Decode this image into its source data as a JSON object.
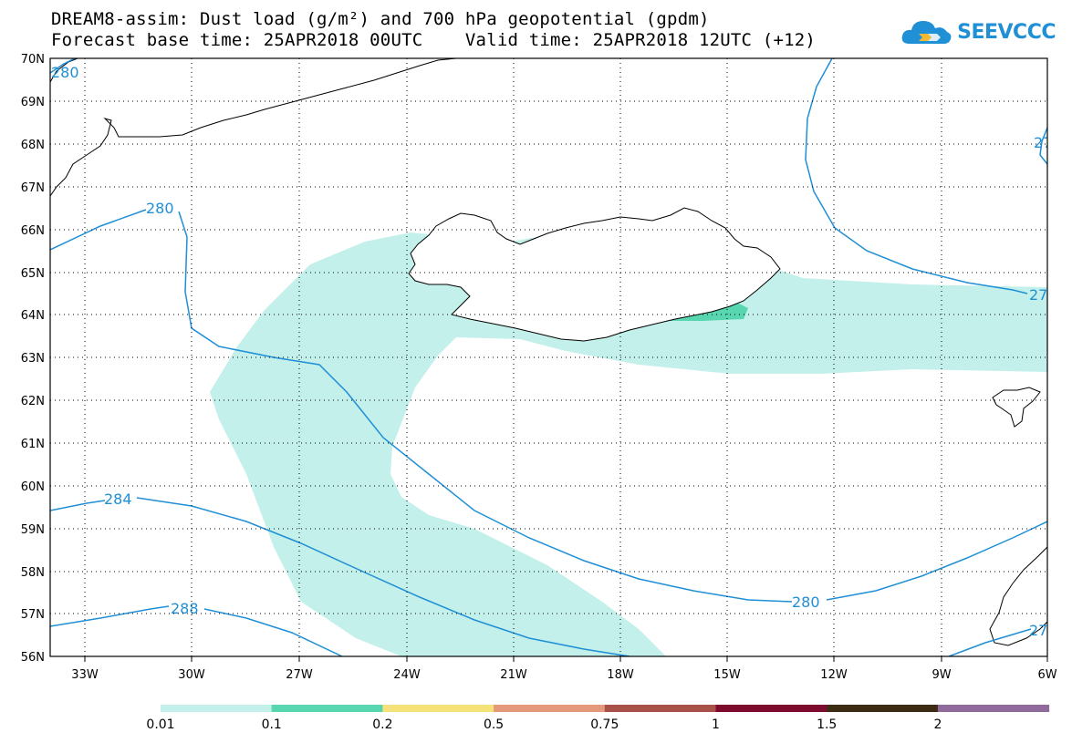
{
  "title": {
    "line1": "DREAM8-assim: Dust load (g/m²) and 700 hPa geopotential (gpdm)",
    "line2": "Forecast base time: 25APR2018 00UTC    Valid time: 25APR2018 12UTC (+12)"
  },
  "logo": {
    "text": "SEEVCCC",
    "icon": "cloud-icon"
  },
  "map": {
    "lat_labels": [
      "70N",
      "69N",
      "68N",
      "67N",
      "66N",
      "65N",
      "64N",
      "63N",
      "62N",
      "61N",
      "60N",
      "59N",
      "58N",
      "57N",
      "56N"
    ],
    "lon_labels": [
      "33W",
      "30W",
      "27W",
      "24W",
      "21W",
      "18W",
      "15W",
      "12W",
      "9W",
      "6W"
    ],
    "contour_labels": [
      "280",
      "280",
      "284",
      "288",
      "280",
      "280",
      "27",
      "27",
      "27"
    ],
    "land_color": "#ffffff",
    "coast_color": "#000000",
    "contour_color": "#1f8fd6"
  },
  "dust_levels": {
    "colors": [
      "#c3f0ea",
      "#57d6b0",
      "#f5e37a",
      "#e49a7a",
      "#a8504a",
      "#7d0b2e",
      "#3d2b14",
      "#8f6a9a"
    ],
    "labels": [
      "0.01",
      "0.1",
      "0.2",
      "0.5",
      "0.75",
      "1",
      "1.5",
      "2"
    ]
  }
}
